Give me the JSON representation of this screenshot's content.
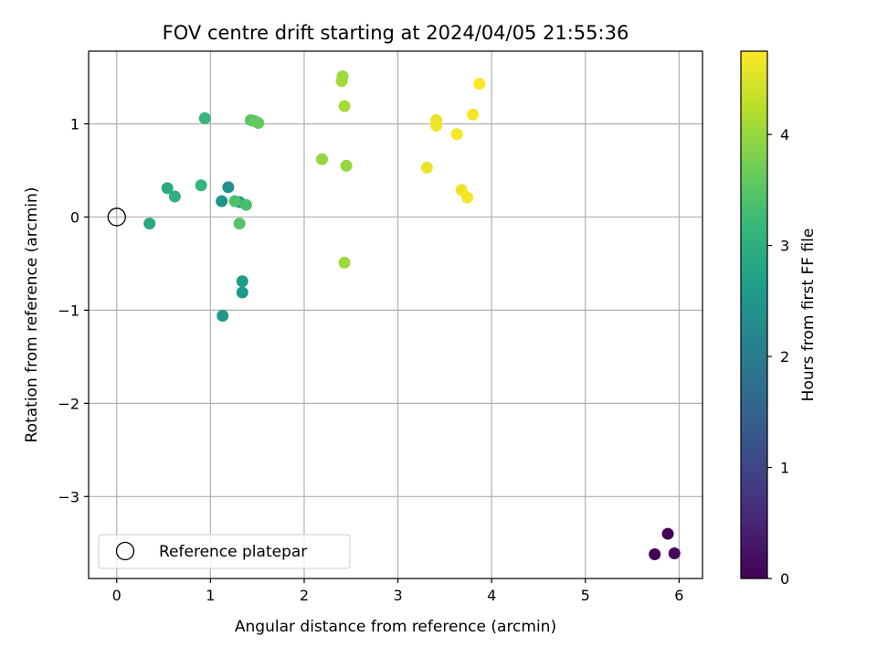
{
  "chart_data": {
    "type": "scatter",
    "title": "FOV centre drift starting at 2024/04/05 21:55:36",
    "xlabel": "Angular distance from reference (arcmin)",
    "ylabel": "Rotation from reference (arcmin)",
    "xlim": [
      -0.3,
      6.25
    ],
    "ylim": [
      -3.88,
      1.78
    ],
    "xticks": [
      0,
      1,
      2,
      3,
      4,
      5,
      6
    ],
    "yticks": [
      -3,
      -2,
      -1,
      0,
      1
    ],
    "grid": true,
    "legend": {
      "placement": "lower-left",
      "entries": [
        "Reference platepar"
      ]
    },
    "reference_point": {
      "x": 0,
      "y": 0,
      "label": "Reference platepar"
    },
    "colorbar": {
      "label": "Hours from first FF file",
      "range": [
        0,
        4.75
      ],
      "ticks": [
        0,
        1,
        2,
        3,
        4
      ],
      "colormap": "viridis",
      "colors": [
        "#440154",
        "#482878",
        "#3e4989",
        "#31688e",
        "#26828e",
        "#1f9e89",
        "#35b779",
        "#6ece58",
        "#b5de2b",
        "#fde725"
      ]
    },
    "points": [
      {
        "x": 5.74,
        "y": -3.62,
        "hours": 0.0
      },
      {
        "x": 5.88,
        "y": -3.4,
        "hours": 0.05
      },
      {
        "x": 5.95,
        "y": -3.61,
        "hours": 0.1
      },
      {
        "x": 1.13,
        "y": -1.06,
        "hours": 2.5
      },
      {
        "x": 1.34,
        "y": -0.69,
        "hours": 2.6
      },
      {
        "x": 1.34,
        "y": -0.81,
        "hours": 2.55
      },
      {
        "x": 1.12,
        "y": 0.17,
        "hours": 2.45
      },
      {
        "x": 1.19,
        "y": 0.32,
        "hours": 2.4
      },
      {
        "x": 1.31,
        "y": 0.16,
        "hours": 2.65
      },
      {
        "x": 0.35,
        "y": -0.07,
        "hours": 2.85
      },
      {
        "x": 0.54,
        "y": 0.31,
        "hours": 2.9
      },
      {
        "x": 0.62,
        "y": 0.22,
        "hours": 3.0
      },
      {
        "x": 0.9,
        "y": 0.34,
        "hours": 3.1
      },
      {
        "x": 0.94,
        "y": 1.06,
        "hours": 3.15
      },
      {
        "x": 1.26,
        "y": 0.17,
        "hours": 3.4
      },
      {
        "x": 1.31,
        "y": -0.07,
        "hours": 3.45
      },
      {
        "x": 1.38,
        "y": 0.13,
        "hours": 3.35
      },
      {
        "x": 1.43,
        "y": 1.04,
        "hours": 3.5
      },
      {
        "x": 1.47,
        "y": 1.03,
        "hours": 3.55
      },
      {
        "x": 1.51,
        "y": 1.01,
        "hours": 3.6
      },
      {
        "x": 2.19,
        "y": 0.62,
        "hours": 4.0
      },
      {
        "x": 2.4,
        "y": 1.46,
        "hours": 4.1
      },
      {
        "x": 2.41,
        "y": 1.51,
        "hours": 4.05
      },
      {
        "x": 2.43,
        "y": 1.19,
        "hours": 4.1
      },
      {
        "x": 2.45,
        "y": 0.55,
        "hours": 4.0
      },
      {
        "x": 2.43,
        "y": -0.49,
        "hours": 4.05
      },
      {
        "x": 3.31,
        "y": 0.53,
        "hours": 4.6
      },
      {
        "x": 3.41,
        "y": 1.04,
        "hours": 4.6
      },
      {
        "x": 3.41,
        "y": 0.98,
        "hours": 4.65
      },
      {
        "x": 3.63,
        "y": 0.89,
        "hours": 4.7
      },
      {
        "x": 3.68,
        "y": 0.29,
        "hours": 4.65
      },
      {
        "x": 3.74,
        "y": 0.21,
        "hours": 4.7
      },
      {
        "x": 3.8,
        "y": 1.1,
        "hours": 4.7
      },
      {
        "x": 3.87,
        "y": 1.43,
        "hours": 4.75
      }
    ]
  }
}
